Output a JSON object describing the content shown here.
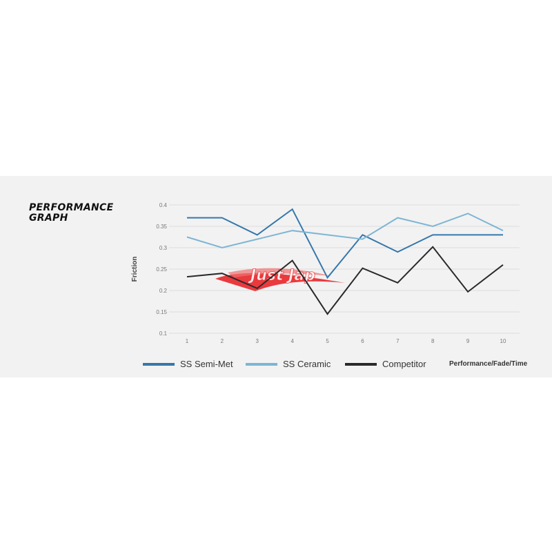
{
  "title_lines": [
    "PERFORMANCE",
    "GRAPH"
  ],
  "watermark": "Just Jap",
  "chart_data": {
    "type": "line",
    "title": "PERFORMANCE GRAPH",
    "xlabel": "Performance/Fade/Time",
    "ylabel": "Friction",
    "x": [
      1,
      2,
      3,
      4,
      5,
      6,
      7,
      8,
      9,
      10
    ],
    "ylim": [
      0.1,
      0.4
    ],
    "yticks": [
      "0.4",
      "0.35",
      "0.3",
      "0.25",
      "0.2",
      "0.15",
      "0.1"
    ],
    "xticks": [
      "1",
      "2",
      "3",
      "4",
      "5",
      "6",
      "7",
      "8",
      "9",
      "10"
    ],
    "grid": true,
    "legend": "bottom",
    "series": [
      {
        "name": "SS Semi-Met",
        "color": "#3577ab",
        "values": [
          0.37,
          0.37,
          0.33,
          0.39,
          0.23,
          0.33,
          0.29,
          0.33,
          0.33,
          0.33
        ]
      },
      {
        "name": "SS Ceramic",
        "color": "#7db5d4",
        "values": [
          0.325,
          0.3,
          0.32,
          0.34,
          0.33,
          0.32,
          0.37,
          0.35,
          0.38,
          0.34
        ]
      },
      {
        "name": "Competitor",
        "color": "#2a2a2a",
        "values": [
          0.232,
          0.24,
          0.205,
          0.27,
          0.145,
          0.252,
          0.218,
          0.302,
          0.197,
          0.26
        ]
      }
    ]
  }
}
